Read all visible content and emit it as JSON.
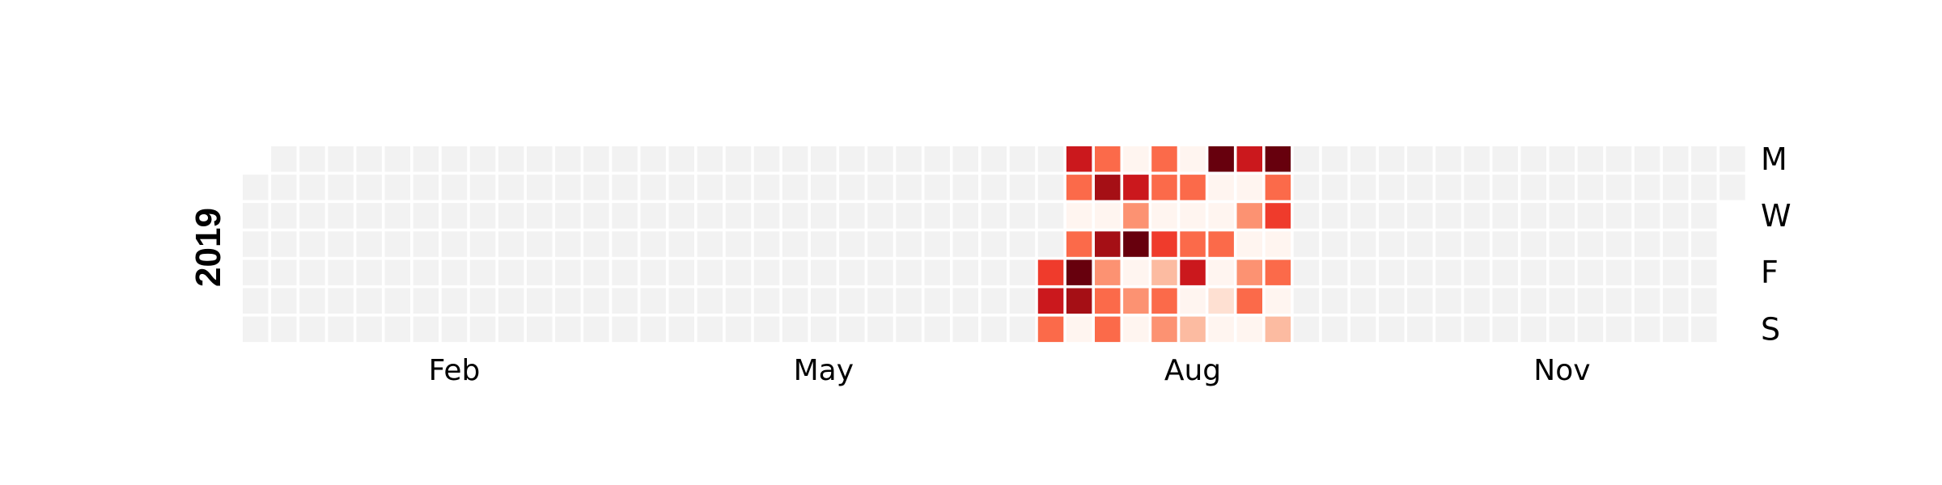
{
  "chart_data": {
    "type": "heatmap",
    "year": "2019",
    "month_labels": [
      {
        "label": "Feb",
        "week": 7
      },
      {
        "label": "May",
        "week": 20
      },
      {
        "label": "Aug",
        "week": 33
      },
      {
        "label": "Nov",
        "week": 46
      }
    ],
    "weekday_labels": [
      {
        "label": "M",
        "row": 0
      },
      {
        "label": "W",
        "row": 2
      },
      {
        "label": "F",
        "row": 4
      },
      {
        "label": "S",
        "row": 6
      }
    ],
    "week_count": 53,
    "empty_color": "#f2f2f2",
    "palette": [
      "#fff5f0",
      "#fee0d2",
      "#fcbba1",
      "#fc9272",
      "#fb6a4a",
      "#ef3b2c",
      "#cb181d",
      "#a50f15",
      "#67000d"
    ],
    "value_range": [
      0,
      8
    ],
    "weeks_with_data": [
      28,
      29,
      30,
      31,
      32,
      33,
      34,
      35,
      36,
      37
    ],
    "values_by_week": [
      [
        null,
        null,
        null,
        null,
        5,
        6,
        4
      ],
      [
        6,
        4,
        0,
        4,
        8,
        7,
        0
      ],
      [
        4,
        7,
        0,
        7,
        3,
        4,
        4
      ],
      [
        0,
        6,
        3,
        8,
        0,
        3,
        0
      ],
      [
        4,
        4,
        0,
        5,
        2,
        4,
        3
      ],
      [
        0,
        4,
        0,
        4,
        6,
        0,
        2
      ],
      [
        8,
        0,
        0,
        4,
        0,
        1,
        0
      ],
      [
        6,
        0,
        3,
        0,
        3,
        4,
        0
      ],
      [
        8,
        4,
        5,
        0,
        4,
        0,
        2
      ],
      [
        null,
        null,
        null,
        null,
        null,
        null,
        null
      ]
    ]
  }
}
